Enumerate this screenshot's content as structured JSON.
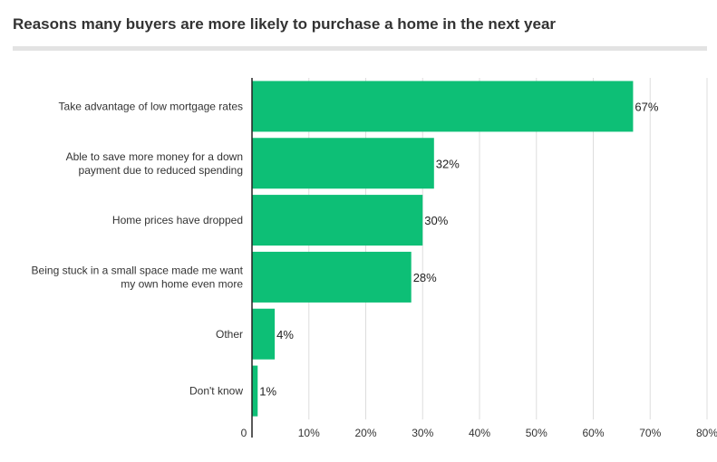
{
  "title": "Reasons many buyers are more likely to purchase a home in the next year",
  "colors": {
    "bar": "#0dbf76",
    "grid": "#dddddd",
    "axis": "#222222",
    "title_rule": "#e3e3e3"
  },
  "chart_data": {
    "type": "bar",
    "orientation": "horizontal",
    "categories": [
      [
        "Take advantage of low mortgage rates"
      ],
      [
        "Able to save more money for a down",
        "payment due to reduced spending"
      ],
      [
        "Home prices have dropped"
      ],
      [
        "Being stuck in a small space made me want",
        "my own home even more"
      ],
      [
        "Other"
      ],
      [
        "Don't know"
      ]
    ],
    "values": [
      67,
      32,
      30,
      28,
      4,
      1
    ],
    "value_labels": [
      "67%",
      "32%",
      "30%",
      "28%",
      "4%",
      "1%"
    ],
    "xlim": [
      0,
      80
    ],
    "x_ticks": [
      0,
      10,
      20,
      30,
      40,
      50,
      60,
      70,
      80
    ],
    "x_tick_labels": [
      "0",
      "10%",
      "20%",
      "30%",
      "40%",
      "50%",
      "60%",
      "70%",
      "80%"
    ],
    "grid": true,
    "xlabel": "",
    "ylabel": ""
  }
}
